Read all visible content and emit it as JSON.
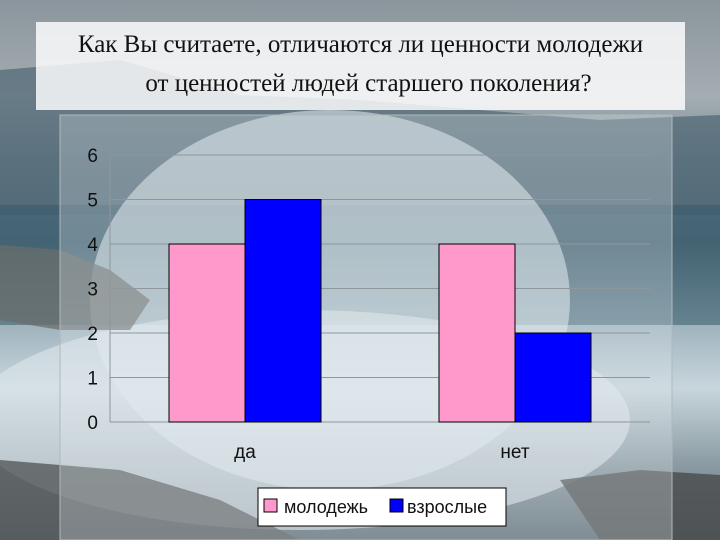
{
  "title": {
    "line1": "Как Вы считаете, отличаются ли ценности молодежи",
    "line2": "от ценностей людей старшего поколения?"
  },
  "chart_data": {
    "type": "bar",
    "categories": [
      "да",
      "нет"
    ],
    "series": [
      {
        "name": "молодежь",
        "values": [
          4,
          4
        ],
        "color": "#ff99cc"
      },
      {
        "name": "взрослые",
        "values": [
          5,
          2
        ],
        "color": "#0000ff"
      }
    ],
    "ylim": [
      0,
      6
    ],
    "yticks": [
      0,
      1,
      2,
      3,
      4,
      5,
      6
    ],
    "grid": true,
    "legend_position": "bottom"
  },
  "colors": {
    "plot_area": "rgba(230,235,238,0.35)",
    "title_box": "#ffffff"
  }
}
